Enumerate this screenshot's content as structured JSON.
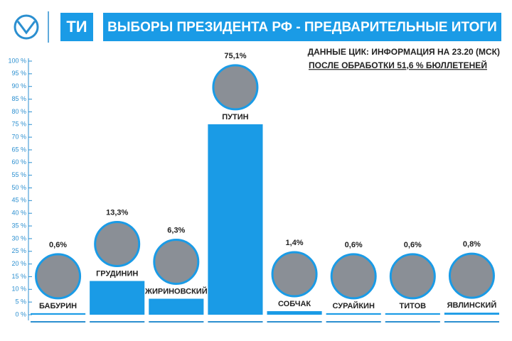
{
  "chart_data": {
    "type": "bar",
    "logo": "ТИ",
    "title": "ВЫБОРЫ ПРЕЗИДЕНТА РФ - ПРЕДВАРИТЕЛЬНЫЕ ИТОГИ",
    "subtitle": [
      "ДАННЫЕ ЦИК: ИНФОРМАЦИЯ НА 23.20 (МСК)",
      "ПОСЛЕ ОБРАБОТКИ 51,6 % БЮЛЛЕТЕНЕЙ"
    ],
    "categories": [
      "БАБУРИН",
      "ГРУДИНИН",
      "ЖИРИНОВСКИЙ",
      "ПУТИН",
      "СОБЧАК",
      "СУРАЙКИН",
      "ТИТОВ",
      "ЯВЛИНСКИЙ"
    ],
    "values": [
      0.6,
      13.3,
      6.3,
      75.1,
      1.4,
      0.6,
      0.6,
      0.8
    ],
    "value_labels": [
      "0,6%",
      "13,3%",
      "6,3%",
      "75,1%",
      "1,4%",
      "0,6%",
      "0,6%",
      "0,8%"
    ],
    "color": "#1a9be6",
    "ylim": [
      0,
      100
    ],
    "yticks": [
      {
        "value": 0,
        "label": "0 %"
      },
      {
        "value": 5,
        "label": "5 %"
      },
      {
        "value": 10,
        "label": "10 %"
      },
      {
        "value": 15,
        "label": "15 %"
      },
      {
        "value": 20,
        "label": "20 %"
      },
      {
        "value": 25,
        "label": "25 %"
      },
      {
        "value": 30,
        "label": "30 %"
      },
      {
        "value": 35,
        "label": "35 %"
      },
      {
        "value": 40,
        "label": "40 %"
      },
      {
        "value": 45,
        "label": "45 %"
      },
      {
        "value": 50,
        "label": "50 %"
      },
      {
        "value": 55,
        "label": "55 %"
      },
      {
        "value": 60,
        "label": "60 %"
      },
      {
        "value": 65,
        "label": "65 %"
      },
      {
        "value": 70,
        "label": "70 %"
      },
      {
        "value": 75,
        "label": "75 %"
      },
      {
        "value": 80,
        "label": "80 %"
      },
      {
        "value": 85,
        "label": "85 %"
      },
      {
        "value": 90,
        "label": "90 %"
      },
      {
        "value": 95,
        "label": "95 %"
      },
      {
        "value": 100,
        "label": "100 %"
      }
    ]
  }
}
